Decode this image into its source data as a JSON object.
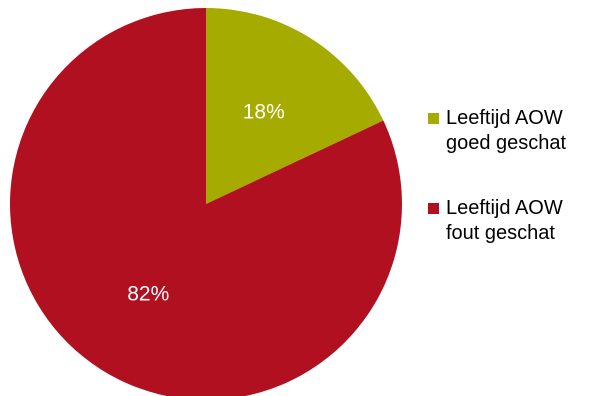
{
  "chart_data": {
    "type": "pie",
    "title": "",
    "slices": [
      {
        "label": "Leeftijd AOW goed geschat",
        "label_lines": [
          "Leeftijd AOW",
          "goed geschat"
        ],
        "value": 18,
        "value_label": "18%",
        "color": "#a6ab00"
      },
      {
        "label": "Leeftijd AOW fout geschat",
        "label_lines": [
          "Leeftijd AOW",
          "fout geschat"
        ],
        "value": 82,
        "value_label": "82%",
        "color": "#b01020"
      }
    ],
    "start_angle_deg": 0,
    "direction": "clockwise",
    "legend_position": "right"
  }
}
